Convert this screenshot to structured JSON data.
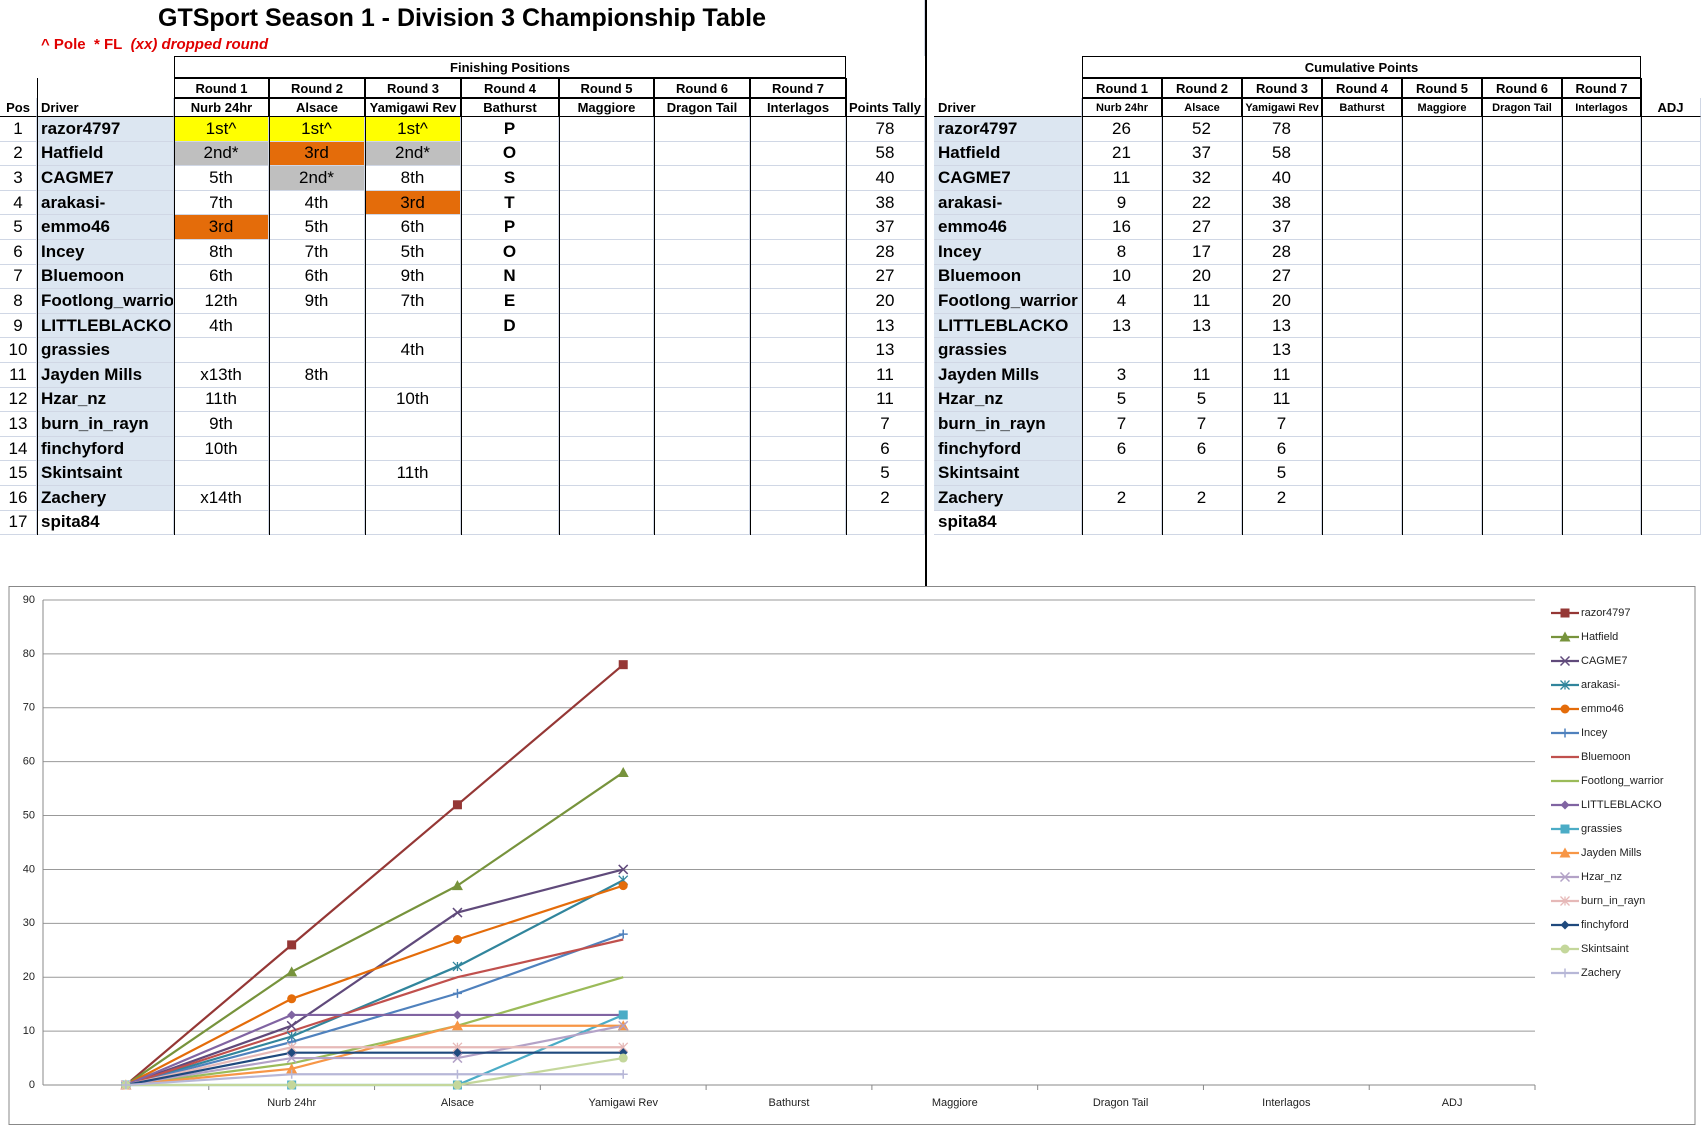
{
  "header": {
    "title": "GTSport Season 1 - Division 3 Championship Table",
    "notes": [
      "^ Pole",
      "* FL",
      "(xx) dropped round"
    ]
  },
  "left_table": {
    "group": "Finishing Positions",
    "rounds": [
      "Round 1",
      "Round 2",
      "Round 3",
      "Round 4",
      "Round 5",
      "Round 6",
      "Round 7"
    ],
    "tracks": [
      "Nurb 24hr",
      "Alsace",
      "Yamigawi Rev",
      "Bathurst",
      "Maggiore",
      "Dragon Tail",
      "Interlagos"
    ],
    "headers": {
      "pos": "Pos",
      "driver": "Driver",
      "tally": "Points Tally"
    },
    "cell_fills": {
      "1st^": "#ffff00",
      "2nd*": "#bfbfbf",
      "3rd": "#e46c0a"
    },
    "driver_fill": "#dce6f1",
    "rows": [
      {
        "pos": 1,
        "driver": "razor4797",
        "results": [
          "1st^",
          "1st^",
          "1st^",
          "P",
          null,
          null,
          null
        ],
        "tally": 78
      },
      {
        "pos": 2,
        "driver": "Hatfield",
        "results": [
          "2nd*",
          "3rd",
          "2nd*",
          "O",
          null,
          null,
          null
        ],
        "tally": 58
      },
      {
        "pos": 3,
        "driver": "CAGME7",
        "results": [
          "5th",
          "2nd*",
          "8th",
          "S",
          null,
          null,
          null
        ],
        "tally": 40
      },
      {
        "pos": 4,
        "driver": "arakasi-",
        "results": [
          "7th",
          "4th",
          "3rd",
          "T",
          null,
          null,
          null
        ],
        "tally": 38
      },
      {
        "pos": 5,
        "driver": "emmo46",
        "results": [
          "3rd",
          "5th",
          "6th",
          "P",
          null,
          null,
          null
        ],
        "tally": 37
      },
      {
        "pos": 6,
        "driver": "Incey",
        "results": [
          "8th",
          "7th",
          "5th",
          "O",
          null,
          null,
          null
        ],
        "tally": 28
      },
      {
        "pos": 7,
        "driver": "Bluemoon",
        "results": [
          "6th",
          "6th",
          "9th",
          "N",
          null,
          null,
          null
        ],
        "tally": 27
      },
      {
        "pos": 8,
        "driver": "Footlong_warrior",
        "results": [
          "12th",
          "9th",
          "7th",
          "E",
          null,
          null,
          null
        ],
        "tally": 20
      },
      {
        "pos": 9,
        "driver": "LITTLEBLACKO",
        "results": [
          "4th",
          null,
          null,
          "D",
          null,
          null,
          null
        ],
        "tally": 13
      },
      {
        "pos": 10,
        "driver": "grassies",
        "results": [
          null,
          null,
          "4th",
          null,
          null,
          null,
          null
        ],
        "tally": 13
      },
      {
        "pos": 11,
        "driver": "Jayden Mills",
        "results": [
          "x13th",
          "8th",
          null,
          null,
          null,
          null,
          null
        ],
        "tally": 11
      },
      {
        "pos": 12,
        "driver": "Hzar_nz",
        "results": [
          "11th",
          null,
          "10th",
          null,
          null,
          null,
          null
        ],
        "tally": 11
      },
      {
        "pos": 13,
        "driver": "burn_in_rayn",
        "results": [
          "9th",
          null,
          null,
          null,
          null,
          null,
          null
        ],
        "tally": 7
      },
      {
        "pos": 14,
        "driver": "finchyford",
        "results": [
          "10th",
          null,
          null,
          null,
          null,
          null,
          null
        ],
        "tally": 6
      },
      {
        "pos": 15,
        "driver": "Skintsaint",
        "results": [
          null,
          null,
          "11th",
          null,
          null,
          null,
          null
        ],
        "tally": 5
      },
      {
        "pos": 16,
        "driver": "Zachery",
        "results": [
          "x14th",
          null,
          null,
          null,
          null,
          null,
          null
        ],
        "tally": 2
      },
      {
        "pos": 17,
        "driver": "spita84",
        "results": [
          null,
          null,
          null,
          null,
          null,
          null,
          null
        ],
        "tally": null
      }
    ]
  },
  "right_table": {
    "group": "Cumulative Points",
    "adj": "ADJ",
    "rows": [
      {
        "points": [
          26,
          52,
          78
        ]
      },
      {
        "points": [
          21,
          37,
          58
        ]
      },
      {
        "points": [
          11,
          32,
          40
        ]
      },
      {
        "points": [
          9,
          22,
          38
        ]
      },
      {
        "points": [
          16,
          27,
          37
        ]
      },
      {
        "points": [
          8,
          17,
          28
        ]
      },
      {
        "points": [
          10,
          20,
          27
        ]
      },
      {
        "points": [
          4,
          11,
          20
        ]
      },
      {
        "points": [
          13,
          13,
          13
        ]
      },
      {
        "points": [
          null,
          null,
          13
        ]
      },
      {
        "points": [
          3,
          11,
          11
        ]
      },
      {
        "points": [
          5,
          5,
          11
        ]
      },
      {
        "points": [
          7,
          7,
          7
        ]
      },
      {
        "points": [
          6,
          6,
          6
        ]
      },
      {
        "points": [
          null,
          null,
          5
        ]
      },
      {
        "points": [
          2,
          2,
          2
        ]
      },
      {
        "points": [
          null,
          null,
          null
        ]
      }
    ]
  },
  "chart_data": {
    "type": "line",
    "categories": [
      null,
      "Nurb 24hr",
      "Alsace",
      "Yamigawi Rev",
      "Bathurst",
      "Maggiore",
      "Dragon Tail",
      "Interlagos",
      "ADJ"
    ],
    "ylim": [
      0,
      90
    ],
    "yticks": [
      0,
      10,
      20,
      30,
      40,
      50,
      60,
      70,
      80,
      90
    ],
    "grid": true,
    "legend": "right",
    "series": [
      {
        "name": "razor4797",
        "color": "#953735",
        "marker": "square",
        "values": [
          0,
          26,
          52,
          78,
          null,
          null,
          null,
          null,
          null
        ]
      },
      {
        "name": "Hatfield",
        "color": "#77933c",
        "marker": "triangle",
        "values": [
          0,
          21,
          37,
          58,
          null,
          null,
          null,
          null,
          null
        ]
      },
      {
        "name": "CAGME7",
        "color": "#604a7b",
        "marker": "x",
        "values": [
          0,
          11,
          32,
          40,
          null,
          null,
          null,
          null,
          null
        ]
      },
      {
        "name": "arakasi-",
        "color": "#31859c",
        "marker": "star",
        "values": [
          0,
          9,
          22,
          38,
          null,
          null,
          null,
          null,
          null
        ]
      },
      {
        "name": "emmo46",
        "color": "#e46c0a",
        "marker": "circle",
        "values": [
          0,
          16,
          27,
          37,
          null,
          null,
          null,
          null,
          null
        ]
      },
      {
        "name": "Incey",
        "color": "#4f81bd",
        "marker": "plus",
        "values": [
          0,
          8,
          17,
          28,
          null,
          null,
          null,
          null,
          null
        ]
      },
      {
        "name": "Bluemoon",
        "color": "#c0504d",
        "marker": "none",
        "values": [
          0,
          10,
          20,
          27,
          null,
          null,
          null,
          null,
          null
        ]
      },
      {
        "name": "Footlong_warrior",
        "color": "#9bbb59",
        "marker": "none",
        "values": [
          0,
          4,
          11,
          20,
          null,
          null,
          null,
          null,
          null
        ]
      },
      {
        "name": "LITTLEBLACKO",
        "color": "#8064a2",
        "marker": "diamond",
        "values": [
          0,
          13,
          13,
          13,
          null,
          null,
          null,
          null,
          null
        ]
      },
      {
        "name": "grassies",
        "color": "#4bacc6",
        "marker": "square",
        "values": [
          0,
          0,
          0,
          13,
          null,
          null,
          null,
          null,
          null
        ]
      },
      {
        "name": "Jayden Mills",
        "color": "#f79646",
        "marker": "triangle",
        "values": [
          0,
          3,
          11,
          11,
          null,
          null,
          null,
          null,
          null
        ]
      },
      {
        "name": "Hzar_nz",
        "color": "#b3a2c7",
        "marker": "x",
        "values": [
          0,
          5,
          5,
          11,
          null,
          null,
          null,
          null,
          null
        ]
      },
      {
        "name": "burn_in_rayn",
        "color": "#e6b9b8",
        "marker": "star",
        "values": [
          0,
          7,
          7,
          7,
          null,
          null,
          null,
          null,
          null
        ]
      },
      {
        "name": "finchyford",
        "color": "#1f497d",
        "marker": "diamond",
        "values": [
          0,
          6,
          6,
          6,
          null,
          null,
          null,
          null,
          null
        ]
      },
      {
        "name": "Skintsaint",
        "color": "#c4d79b",
        "marker": "circle",
        "values": [
          0,
          0,
          0,
          5,
          null,
          null,
          null,
          null,
          null
        ]
      },
      {
        "name": "Zachery",
        "color": "#b7b7d7",
        "marker": "plus",
        "values": [
          0,
          2,
          2,
          2,
          null,
          null,
          null,
          null,
          null
        ]
      }
    ]
  }
}
